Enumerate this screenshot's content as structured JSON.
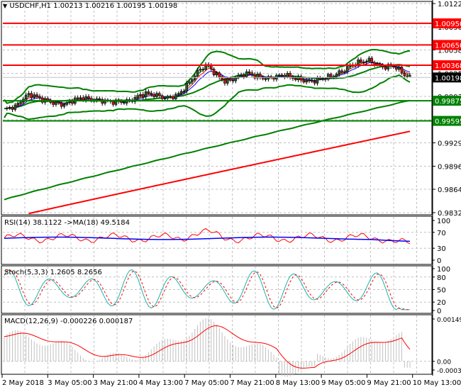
{
  "header": {
    "collapse_glyph": "▼",
    "symbol": "USDCHF,H1",
    "open": "1.00213",
    "high": "1.00216",
    "low": "1.00195",
    "close": "1.00198"
  },
  "colors": {
    "background": "#ffffff",
    "grid": "#c0c0c0",
    "frame": "#000000",
    "bull_candle": "#2e5a2e",
    "bear_candle": "#e01010",
    "bollinger": "#008000",
    "level_red": "#ff0000",
    "level_green": "#008000",
    "ma_fast_red": "#ff0000",
    "ma_blue": "#0000ff",
    "ma_green": "#008000",
    "ma_long_green": "#008000",
    "ma_long_red": "#ff0000",
    "rsi_line": "#ff0000",
    "rsi_ma": "#0000ff",
    "stoch_main": "#20b2aa",
    "stoch_signal": "#ff0000",
    "macd_hist": "#c0c0c0",
    "macd_signal": "#ff0000",
    "current_price_bg": "#000000"
  },
  "main_pane": {
    "price_axis": [
      "1.01225",
      "1.00900",
      "1.00580",
      "1.00255",
      "0.99935",
      "0.99610",
      "0.99290",
      "0.98965",
      "0.98645",
      "0.98320"
    ],
    "price_axis_visible": [
      "1.01225",
      "0.99290",
      "0.98965",
      "0.98645",
      "0.98320"
    ],
    "levels": [
      {
        "price": "1.00950",
        "color": "red"
      },
      {
        "price": "1.00650",
        "color": "red"
      },
      {
        "price": "1.00368",
        "color": "red"
      },
      {
        "price": "0.99875",
        "color": "green"
      },
      {
        "price": "0.99595",
        "color": "green"
      }
    ],
    "current_price": "1.00198"
  },
  "rsi_pane": {
    "label": "RSI(14) 38.1122  ->MA(18) 49.5184",
    "axis": [
      "100",
      "70",
      "30",
      "0"
    ]
  },
  "stoch_pane": {
    "label": "Stoch(5,3,3) 1.2605 8.2656",
    "axis": [
      "100",
      "80",
      "50",
      "20",
      "0"
    ]
  },
  "macd_pane": {
    "label": "MACD(12,26,9) -0.000226 0.000187",
    "axis": [
      "0.001492",
      "0.00",
      "-0.000308"
    ]
  },
  "time_axis": [
    "2 May 2018",
    "3 May 05:00",
    "3 May 21:00",
    "4 May 13:00",
    "7 May 05:00",
    "7 May 21:00",
    "8 May 13:00",
    "9 May 05:00",
    "9 May 21:00",
    "10 May 13:00"
  ],
  "chart_data": [
    {
      "type": "candlestick",
      "title": "USDCHF,H1 1.00213 1.00216 1.00195 1.00198",
      "xlabel": "",
      "ylabel": "",
      "ylim": [
        0.9832,
        1.01225
      ],
      "x_tick_labels": [
        "2 May 2018",
        "3 May 05:00",
        "3 May 21:00",
        "4 May 13:00",
        "7 May 05:00",
        "7 May 21:00",
        "8 May 13:00",
        "9 May 05:00",
        "9 May 21:00",
        "10 May 13:00"
      ],
      "y_tick_labels": [
        "1.01225",
        "1.00900",
        "1.00580",
        "1.00255",
        "0.99935",
        "0.99610",
        "0.99290",
        "0.98965",
        "0.98645",
        "0.98320"
      ],
      "horizontal_levels": [
        1.0095,
        1.0065,
        1.00368,
        0.99875,
        0.99595
      ],
      "last_price": 1.00198,
      "ohlc_last": {
        "open": 1.00213,
        "high": 1.00216,
        "low": 1.00195,
        "close": 1.00198
      },
      "close_series_approx": [
        0.9975,
        0.9978,
        0.998,
        0.999,
        0.9996,
        0.9995,
        0.999,
        0.9988,
        0.9985,
        0.9983,
        0.9982,
        0.9986,
        0.999,
        0.9992,
        0.999,
        0.9989,
        0.9988,
        0.9987,
        0.9986,
        0.9986,
        0.9986,
        0.9987,
        0.9992,
        0.9996,
        0.9998,
        0.9996,
        0.9994,
        0.9991,
        0.9993,
        0.9995,
        1.0003,
        1.0013,
        1.0024,
        1.0032,
        1.0038,
        1.0028,
        1.002,
        1.0014,
        1.0016,
        1.002,
        1.0024,
        1.0026,
        1.0022,
        1.002,
        1.0018,
        1.002,
        1.0022,
        1.0024,
        1.002,
        1.0018,
        1.0016,
        1.0014,
        1.0015,
        1.0018,
        1.002,
        1.0022,
        1.0026,
        1.003,
        1.0036,
        1.004,
        1.0042,
        1.0044,
        1.004,
        1.0036,
        1.0034,
        1.0036,
        1.0032,
        1.0024,
        1.002
      ],
      "series": [
        {
          "name": "Bollinger upper",
          "color": "#008000"
        },
        {
          "name": "Bollinger middle",
          "color": "#008000"
        },
        {
          "name": "Bollinger lower",
          "color": "#008000"
        },
        {
          "name": "MA fast",
          "color": "#ff0000"
        },
        {
          "name": "MA medium",
          "color": "#0000ff"
        },
        {
          "name": "MA long 1",
          "color": "#008000",
          "start": 0.985,
          "end": 0.9988
        },
        {
          "name": "MA long 2",
          "color": "#ff0000",
          "start": 0.9823,
          "end": 0.995
        }
      ]
    },
    {
      "type": "line",
      "title": "RSI(14) 38.1122 ->MA(18) 49.5184",
      "ylim": [
        0,
        100
      ],
      "y_tick_labels": [
        "100",
        "70",
        "30",
        "0"
      ],
      "series": [
        {
          "name": "RSI(14)",
          "last": 38.1122,
          "color": "#ff0000"
        },
        {
          "name": "MA(18)",
          "last": 49.5184,
          "color": "#0000ff"
        }
      ]
    },
    {
      "type": "line",
      "title": "Stoch(5,3,3) 1.2605 8.2656",
      "ylim": [
        0,
        100
      ],
      "y_tick_labels": [
        "100",
        "80",
        "50",
        "20",
        "0"
      ],
      "series": [
        {
          "name": "%K",
          "last": 1.2605,
          "color": "#20b2aa"
        },
        {
          "name": "%D",
          "last": 8.2656,
          "color": "#ff0000",
          "style": "dashed"
        }
      ]
    },
    {
      "type": "bar",
      "title": "MACD(12,26,9) -0.000226 0.000187",
      "ylim": [
        -0.000308,
        0.001492
      ],
      "y_tick_labels": [
        "0.001492",
        "0.00",
        "-0.000308"
      ],
      "series": [
        {
          "name": "MACD histogram",
          "last": -0.000226,
          "color": "#c0c0c0"
        },
        {
          "name": "Signal",
          "last": 0.000187,
          "color": "#ff0000"
        }
      ]
    }
  ]
}
